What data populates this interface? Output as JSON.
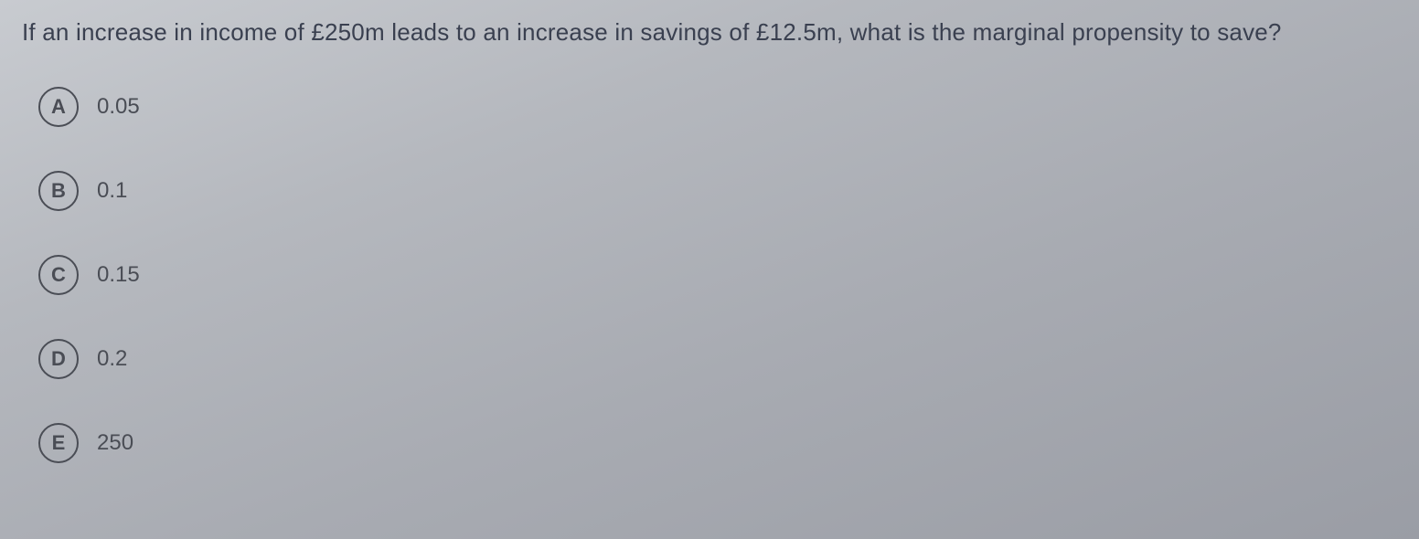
{
  "question": {
    "text": "If an increase in income of £250m leads to an increase in savings of £12.5m, what is the marginal propensity to save?"
  },
  "options": [
    {
      "letter": "A",
      "text": "0.05"
    },
    {
      "letter": "B",
      "text": "0.1"
    },
    {
      "letter": "C",
      "text": "0.15"
    },
    {
      "letter": "D",
      "text": "0.2"
    },
    {
      "letter": "E",
      "text": "250"
    }
  ],
  "colors": {
    "text_primary": "#4a4d55",
    "question_text": "#3a4050",
    "circle_border": "#4a4d55",
    "background_start": "#c8cbd0",
    "background_end": "#9a9da5"
  },
  "typography": {
    "question_fontsize": 26,
    "option_letter_fontsize": 22,
    "option_text_fontsize": 24
  }
}
